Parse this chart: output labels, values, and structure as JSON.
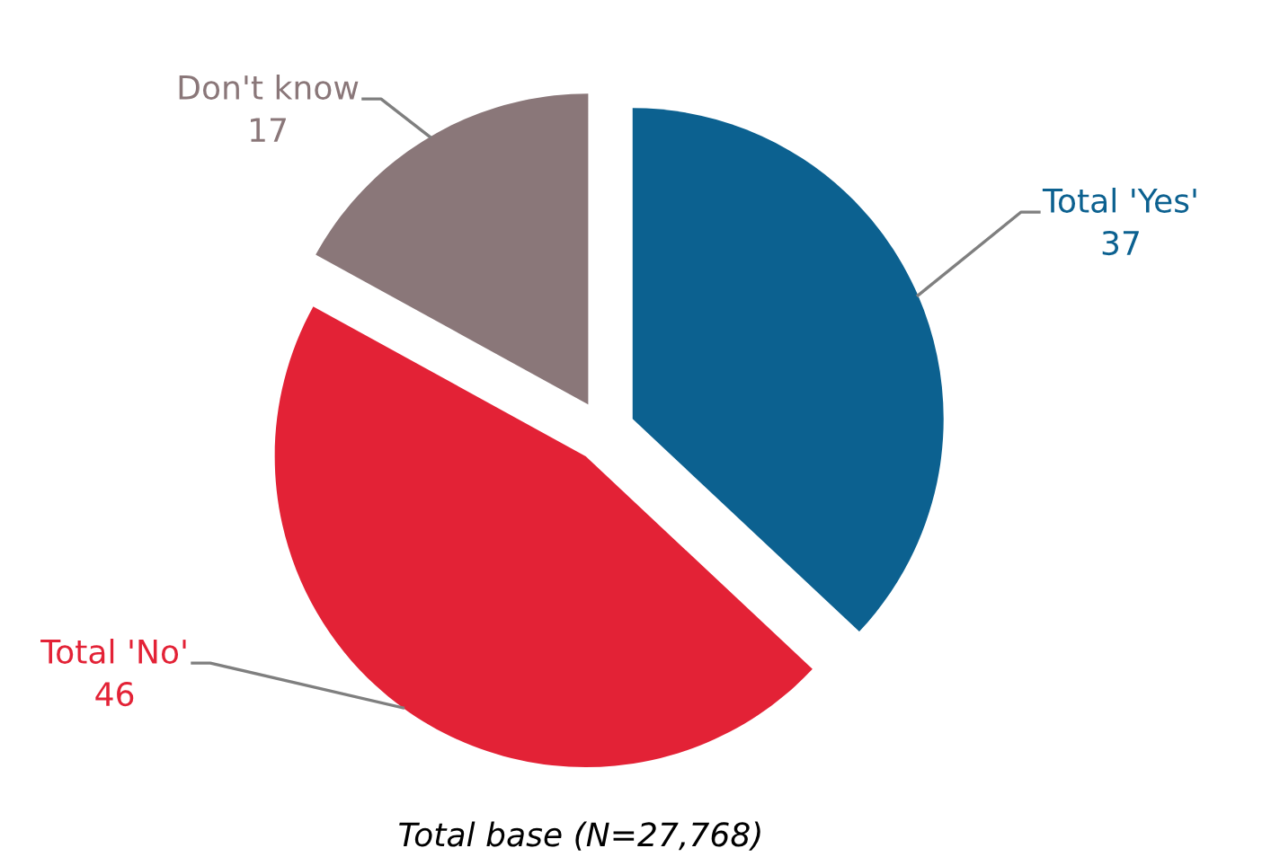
{
  "chart_data": {
    "type": "pie",
    "categories": [
      "Total 'Yes'",
      "Total 'No'",
      "Don't know"
    ],
    "values": [
      37,
      46,
      17
    ],
    "colors": [
      "#0c6190",
      "#e32236",
      "#8a7779"
    ],
    "data_labels": true,
    "annotations": [
      "Total base (N=27,768)"
    ]
  }
}
